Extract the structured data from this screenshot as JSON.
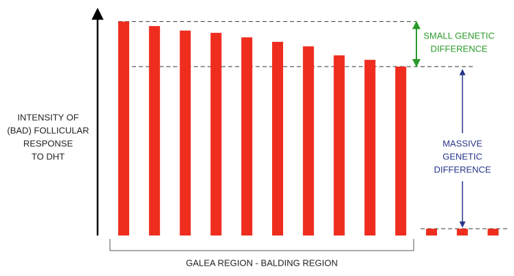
{
  "chart_data": {
    "type": "bar",
    "y_label_lines": [
      "INTENSITY OF",
      "(BAD) FOLLICULAR",
      "RESPONSE",
      "TO DHT"
    ],
    "x_label": "GALEA REGION - BALDING REGION",
    "annotations": [
      {
        "lines": [
          "SMALL GENETIC",
          "DIFFERENCE"
        ],
        "color": "#2a9a2a"
      },
      {
        "lines": [
          "MASSIVE",
          "GENETIC",
          "DIFFERENCE"
        ],
        "color": "#26348a"
      }
    ],
    "categories": [
      null,
      null,
      null,
      null,
      null,
      null,
      null,
      null,
      null,
      null,
      null,
      null,
      null
    ],
    "values": [
      95,
      93,
      91,
      90,
      88,
      86,
      84,
      80,
      78,
      75,
      3,
      3,
      3
    ],
    "color": "#ee2d1e",
    "ylim": [
      0,
      100
    ]
  }
}
